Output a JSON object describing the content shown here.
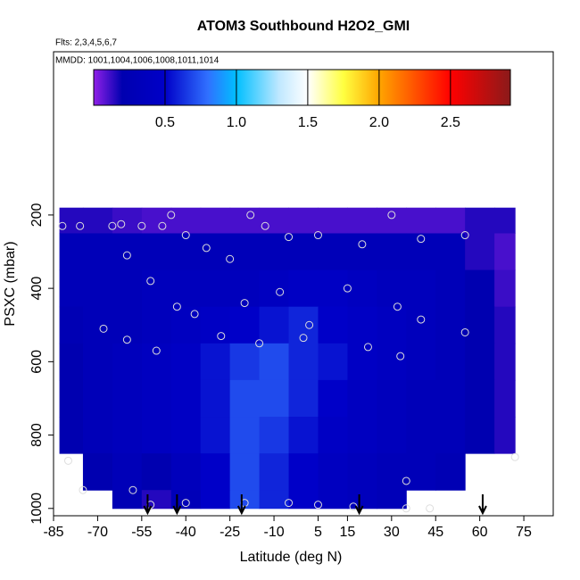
{
  "chart_data": {
    "type": "heatmap",
    "title": "ATOM3 Southbound H2O2_GMI",
    "subtitle": "Flts: 2,3,4,5,6,7",
    "annotation": "MMDD: 1001,1004,1006,1008,1011,1014",
    "x_label": "Latitude (deg N)",
    "y_label": "PSXC (mbar)",
    "xlim": [
      -85,
      85
    ],
    "xticks": [
      -85,
      -70,
      -55,
      -40,
      -25,
      -10,
      5,
      15,
      30,
      45,
      60,
      75
    ],
    "ylim": [
      1020,
      -245
    ],
    "yticks": [
      200,
      400,
      600,
      800,
      1000
    ],
    "x_edges": [
      -83,
      -75,
      -65,
      -55,
      -45,
      -35,
      -25,
      -15,
      -5,
      5,
      15,
      25,
      35,
      45,
      55,
      65,
      72
    ],
    "y_edges": [
      180,
      250,
      350,
      450,
      550,
      650,
      750,
      850,
      950,
      1000
    ],
    "values": [
      [
        0.15,
        0.15,
        0.12,
        0.1,
        0.1,
        0.1,
        0.1,
        0.1,
        0.1,
        0.1,
        0.1,
        0.1,
        0.1,
        0.1,
        0.15,
        0.15
      ],
      [
        0.3,
        0.3,
        0.3,
        0.3,
        0.3,
        0.3,
        0.3,
        0.3,
        0.3,
        0.3,
        0.3,
        0.3,
        0.3,
        0.3,
        0.15,
        0.1
      ],
      [
        0.3,
        0.3,
        0.3,
        0.35,
        0.35,
        0.35,
        0.35,
        0.4,
        0.45,
        0.45,
        0.4,
        0.35,
        0.35,
        0.3,
        0.2,
        0.12
      ],
      [
        0.25,
        0.3,
        0.3,
        0.35,
        0.4,
        0.45,
        0.5,
        0.55,
        0.6,
        0.5,
        0.45,
        0.4,
        0.35,
        0.3,
        0.2,
        0.15
      ],
      [
        0.2,
        0.3,
        0.35,
        0.4,
        0.45,
        0.55,
        0.65,
        0.7,
        0.6,
        0.55,
        0.45,
        0.4,
        0.35,
        0.3,
        0.2,
        0.15
      ],
      [
        0.2,
        0.3,
        0.35,
        0.4,
        0.45,
        0.55,
        0.7,
        0.7,
        0.6,
        0.5,
        0.4,
        0.35,
        0.3,
        0.3,
        0.2,
        0.15
      ],
      [
        0.2,
        0.3,
        0.35,
        0.4,
        0.45,
        0.55,
        0.7,
        0.65,
        0.55,
        0.45,
        0.4,
        0.35,
        0.3,
        0.3,
        0.2,
        0.15
      ],
      [
        null,
        0.2,
        0.3,
        0.2,
        0.35,
        0.5,
        0.7,
        0.6,
        0.5,
        0.4,
        0.35,
        0.3,
        0.3,
        0.25,
        null,
        null
      ],
      [
        null,
        null,
        0.25,
        0.15,
        0.3,
        0.5,
        0.7,
        0.6,
        0.5,
        0.4,
        0.35,
        0.3,
        null,
        null,
        null,
        null
      ]
    ],
    "colorbar_lim": [
      0,
      2.92
    ],
    "colorbar_ticks": [
      {
        "value": 0.5,
        "label": "0.5"
      },
      {
        "value": 1,
        "label": "1.0"
      },
      {
        "value": 1.5,
        "label": "1.5"
      },
      {
        "value": 2,
        "label": "2.0"
      },
      {
        "value": 2.5,
        "label": "2.5"
      }
    ],
    "colorscale": [
      {
        "value": 0,
        "color": "#9020e8"
      },
      {
        "value": 0.2,
        "color": "#0000b0"
      },
      {
        "value": 0.5,
        "color": "#0000c8"
      },
      {
        "value": 0.8,
        "color": "#3070ff"
      },
      {
        "value": 1,
        "color": "#00bfff"
      },
      {
        "value": 1.3,
        "color": "#c0e8ff"
      },
      {
        "value": 1.5,
        "color": "#ffffff"
      },
      {
        "value": 1.75,
        "color": "#ffff40"
      },
      {
        "value": 2,
        "color": "#ffa500"
      },
      {
        "value": 2.5,
        "color": "#ff0000"
      },
      {
        "value": 2.92,
        "color": "#8b1a1a"
      }
    ],
    "points": {
      "x": [
        -82,
        -76,
        -65,
        -62,
        -55,
        -48,
        -45,
        -40,
        -33,
        -25,
        -18,
        -13,
        -5,
        5,
        20,
        30,
        40,
        55,
        -60,
        -52,
        -43,
        -37,
        -20,
        -8,
        2,
        15,
        32,
        40,
        55,
        -68,
        -60,
        -50,
        -28,
        -15,
        0,
        22,
        33,
        -58,
        -52,
        -40,
        -20,
        -5,
        5,
        17,
        35,
        43,
        35,
        72,
        -80,
        -75
      ],
      "y": [
        230,
        230,
        230,
        225,
        230,
        230,
        200,
        255,
        290,
        320,
        200,
        230,
        260,
        255,
        280,
        200,
        265,
        255,
        310,
        380,
        450,
        470,
        440,
        410,
        500,
        400,
        450,
        485,
        520,
        510,
        540,
        570,
        530,
        550,
        535,
        560,
        585,
        950,
        990,
        985,
        985,
        985,
        990,
        995,
        1000,
        1000,
        925,
        860,
        870,
        950
      ],
      "color": "#dddddd"
    },
    "arrows_lat": [
      -53,
      -43,
      -21,
      19,
      61
    ]
  }
}
